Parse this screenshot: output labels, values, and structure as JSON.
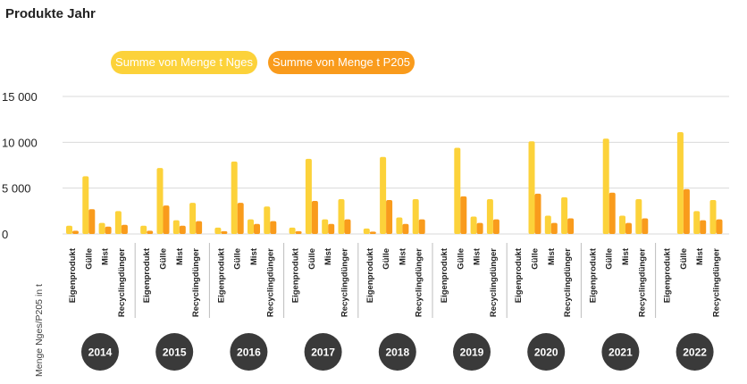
{
  "title": "Produkte Jahr",
  "colors": {
    "nges": "#fcd23a",
    "p205": "#f99b1c",
    "grid": "#d9d9d9",
    "year_badge": "#3a3a3a"
  },
  "chart_data": {
    "type": "bar",
    "title": "Produkte Jahr",
    "ylabel": "Menge Nges/P205 in t",
    "ylim": [
      0,
      15000
    ],
    "yticks": [
      0,
      5000,
      10000,
      15000
    ],
    "ytick_labels": [
      "0",
      "5 000",
      "10 000",
      "15 000"
    ],
    "grid": true,
    "legend_position": "top-left",
    "products": [
      "Eigenprodukt",
      "Gülle",
      "Mist",
      "Recyclingdünger"
    ],
    "series": [
      {
        "name": "Summe von Menge t Nges",
        "color": "#fcd23a"
      },
      {
        "name": "Summe von Menge t P205",
        "color": "#f99b1c"
      }
    ],
    "years": [
      {
        "year": "2014",
        "nges": [
          900,
          6300,
          1200,
          2500
        ],
        "p205": [
          350,
          2700,
          800,
          1000
        ]
      },
      {
        "year": "2015",
        "nges": [
          900,
          7200,
          1500,
          3400
        ],
        "p205": [
          350,
          3100,
          900,
          1400
        ]
      },
      {
        "year": "2016",
        "nges": [
          700,
          7900,
          1600,
          3000
        ],
        "p205": [
          300,
          3400,
          1100,
          1400
        ]
      },
      {
        "year": "2017",
        "nges": [
          700,
          8200,
          1600,
          3800
        ],
        "p205": [
          300,
          3600,
          1100,
          1600
        ]
      },
      {
        "year": "2018",
        "nges": [
          600,
          8400,
          1800,
          3800
        ],
        "p205": [
          250,
          3700,
          1100,
          1600
        ]
      },
      {
        "year": "2019",
        "nges": [
          0,
          9400,
          1900,
          3800
        ],
        "p205": [
          0,
          4100,
          1200,
          1600
        ]
      },
      {
        "year": "2020",
        "nges": [
          0,
          10100,
          2000,
          4000
        ],
        "p205": [
          0,
          4400,
          1200,
          1700
        ]
      },
      {
        "year": "2021",
        "nges": [
          0,
          10400,
          2000,
          3800
        ],
        "p205": [
          0,
          4500,
          1200,
          1700
        ]
      },
      {
        "year": "2022",
        "nges": [
          0,
          11100,
          2500,
          3700
        ],
        "p205": [
          0,
          4900,
          1500,
          1600
        ]
      }
    ]
  }
}
